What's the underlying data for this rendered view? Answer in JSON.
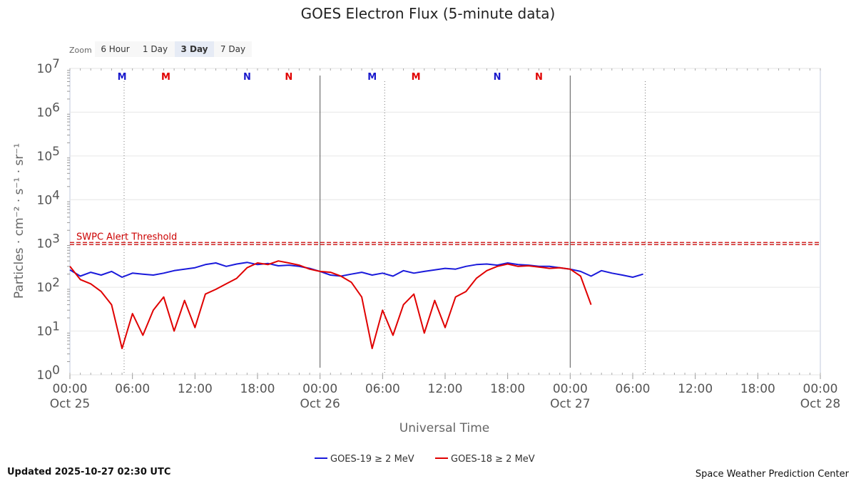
{
  "chart_data": {
    "type": "line",
    "title": "GOES Electron Flux (5-minute data)",
    "xlabel": "Universal Time",
    "ylabel": "Particles · cm⁻² · s⁻¹ · sr⁻¹",
    "yscale": "log",
    "ylim": [
      1,
      10000000
    ],
    "yticks": [
      {
        "value": 1,
        "base": "10",
        "exp": "0"
      },
      {
        "value": 10,
        "base": "10",
        "exp": "1"
      },
      {
        "value": 100,
        "base": "10",
        "exp": "2"
      },
      {
        "value": 1000,
        "base": "10",
        "exp": "3"
      },
      {
        "value": 10000,
        "base": "10",
        "exp": "4"
      },
      {
        "value": 100000,
        "base": "10",
        "exp": "5"
      },
      {
        "value": 1000000,
        "base": "10",
        "exp": "6"
      },
      {
        "value": 10000000,
        "base": "10",
        "exp": "7"
      }
    ],
    "xlim_hours": [
      0,
      72
    ],
    "xticks": [
      {
        "hours": 0,
        "time": "00:00",
        "date": "Oct 25"
      },
      {
        "hours": 6,
        "time": "06:00",
        "date": ""
      },
      {
        "hours": 12,
        "time": "12:00",
        "date": ""
      },
      {
        "hours": 18,
        "time": "18:00",
        "date": ""
      },
      {
        "hours": 24,
        "time": "00:00",
        "date": "Oct 26"
      },
      {
        "hours": 30,
        "time": "06:00",
        "date": ""
      },
      {
        "hours": 36,
        "time": "12:00",
        "date": ""
      },
      {
        "hours": 42,
        "time": "18:00",
        "date": ""
      },
      {
        "hours": 48,
        "time": "00:00",
        "date": "Oct 27"
      },
      {
        "hours": 54,
        "time": "06:00",
        "date": ""
      },
      {
        "hours": 60,
        "time": "12:00",
        "date": ""
      },
      {
        "hours": 66,
        "time": "18:00",
        "date": ""
      },
      {
        "hours": 72,
        "time": "00:00",
        "date": "Oct 28"
      }
    ],
    "day_lines_hours": [
      24,
      48
    ],
    "dotted_lines_hours": [
      5.2,
      30.2,
      55.2
    ],
    "threshold": {
      "value": 1000,
      "label": "SWPC Alert Threshold",
      "color": "#cc0000"
    },
    "markers": [
      {
        "hours": 5,
        "label": "M",
        "color": "#1a1acc"
      },
      {
        "hours": 9.2,
        "label": "M",
        "color": "#e00000"
      },
      {
        "hours": 17,
        "label": "N",
        "color": "#1a1acc"
      },
      {
        "hours": 21,
        "label": "N",
        "color": "#e00000"
      },
      {
        "hours": 29,
        "label": "M",
        "color": "#1a1acc"
      },
      {
        "hours": 33.2,
        "label": "M",
        "color": "#e00000"
      },
      {
        "hours": 41,
        "label": "N",
        "color": "#1a1acc"
      },
      {
        "hours": 45,
        "label": "N",
        "color": "#e00000"
      }
    ],
    "series": [
      {
        "name": "GOES-19 ≥ 2 MeV",
        "color": "#1a1adb",
        "x_hours": [
          0,
          1,
          2,
          3,
          4,
          5,
          6,
          7,
          8,
          9,
          10,
          11,
          12,
          13,
          14,
          15,
          16,
          17,
          18,
          19,
          20,
          21,
          22,
          23,
          24,
          25,
          26,
          27,
          28,
          29,
          30,
          31,
          32,
          33,
          34,
          35,
          36,
          37,
          38,
          39,
          40,
          41,
          42,
          43,
          44,
          45,
          46,
          47,
          48,
          49,
          50,
          51,
          52,
          53,
          54,
          55,
          56,
          57,
          58,
          59,
          60,
          61,
          62,
          63,
          64,
          65,
          66,
          67,
          68,
          69,
          70,
          71,
          72
        ],
        "values": [
          250,
          180,
          220,
          190,
          230,
          170,
          210,
          200,
          190,
          210,
          240,
          260,
          280,
          330,
          360,
          300,
          340,
          370,
          330,
          350,
          310,
          320,
          300,
          270,
          230,
          190,
          180,
          200,
          220,
          190,
          210,
          180,
          240,
          210,
          230,
          250,
          270,
          260,
          300,
          330,
          340,
          320,
          360,
          330,
          320,
          300,
          300,
          280,
          260,
          230,
          180,
          240,
          210,
          190,
          170,
          200,
          null,
          null,
          null,
          null,
          null,
          null,
          null,
          null,
          null,
          null,
          null,
          null,
          null,
          null,
          null,
          null,
          null
        ]
      },
      {
        "name": "GOES-18 ≥ 2 MeV",
        "color": "#e00000",
        "x_hours": [
          0,
          1,
          2,
          3,
          4,
          5,
          6,
          7,
          8,
          9,
          10,
          11,
          12,
          13,
          14,
          15,
          16,
          17,
          18,
          19,
          20,
          21,
          22,
          23,
          24,
          25,
          26,
          27,
          28,
          29,
          30,
          31,
          32,
          33,
          34,
          35,
          36,
          37,
          38,
          39,
          40,
          41,
          42,
          43,
          44,
          45,
          46,
          47,
          48,
          49,
          50,
          51,
          52,
          53,
          54,
          55,
          56,
          57,
          58,
          59,
          60,
          61,
          62,
          63,
          64,
          65,
          66,
          67,
          68,
          69,
          70,
          71,
          72
        ],
        "values": [
          300,
          150,
          120,
          80,
          40,
          4,
          25,
          8,
          30,
          60,
          10,
          50,
          12,
          70,
          90,
          120,
          160,
          280,
          360,
          330,
          400,
          360,
          320,
          260,
          230,
          220,
          180,
          130,
          60,
          4,
          30,
          8,
          40,
          70,
          9,
          50,
          12,
          60,
          80,
          160,
          240,
          300,
          340,
          300,
          310,
          290,
          270,
          280,
          260,
          180,
          40,
          null,
          null,
          null,
          null,
          null,
          null,
          null,
          null,
          null,
          null,
          null,
          null,
          null,
          null,
          null,
          null,
          null,
          null,
          null,
          null,
          null,
          null
        ]
      }
    ]
  },
  "zoom": {
    "label": "Zoom",
    "buttons": [
      {
        "text": "6 Hour",
        "selected": false
      },
      {
        "text": "1 Day",
        "selected": false
      },
      {
        "text": "3 Day",
        "selected": true
      },
      {
        "text": "7 Day",
        "selected": false
      }
    ]
  },
  "footer": {
    "updated": "Updated 2025-10-27 02:30 UTC",
    "source": "Space Weather Prediction Center"
  },
  "colors": {
    "grid": "#e6e6e6",
    "plot_border": "#c0c8dc",
    "zoom_selected": "#e6ebf5",
    "zoom_bg": "#f7f7f7"
  }
}
